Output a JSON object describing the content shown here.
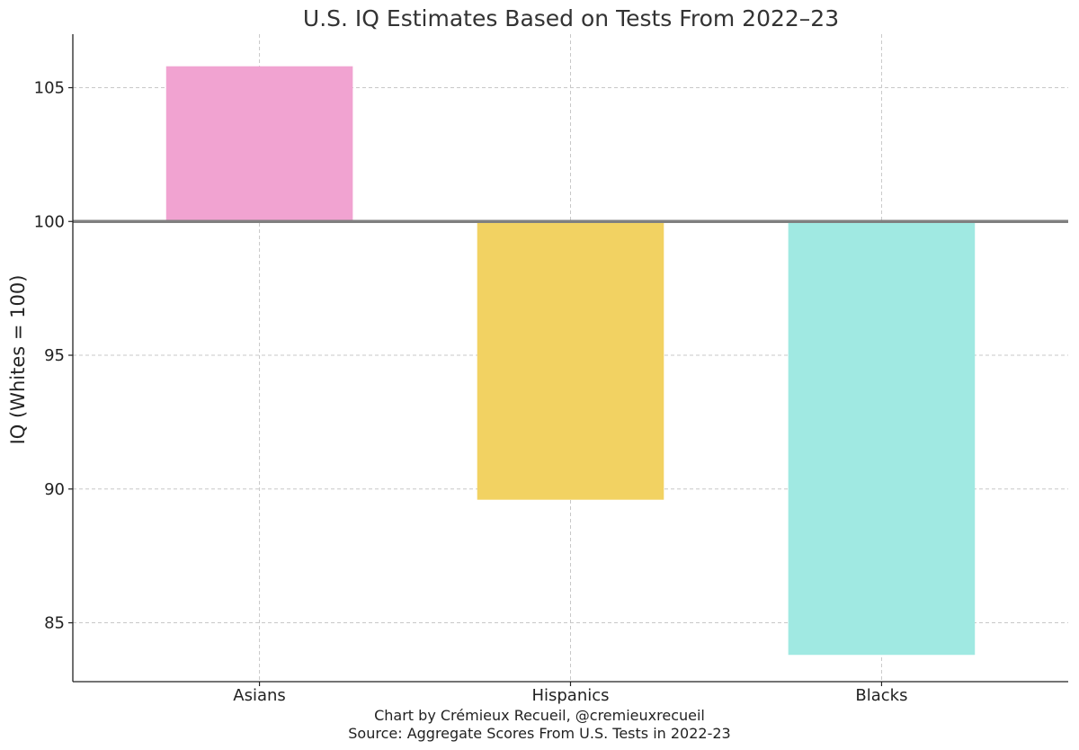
{
  "chart_data": {
    "type": "bar",
    "title": "U.S. IQ Estimates Based on Tests From 2022–23",
    "xlabel": "",
    "ylabel": "IQ (Whites = 100)",
    "categories": [
      "Asians",
      "Hispanics",
      "Blacks"
    ],
    "values": [
      105.8,
      89.6,
      83.8
    ],
    "baseline": 100,
    "colors": [
      "#f1a3d1",
      "#f2d262",
      "#a0e9e2"
    ],
    "reference_line": {
      "value": 100,
      "color": "#808080"
    },
    "ylim": [
      82.8,
      107
    ],
    "yticks": [
      85,
      90,
      95,
      100,
      105
    ],
    "grid": true,
    "caption": {
      "line1": "Chart by Crémieux Recueil, @cremieuxrecueil",
      "line2": "Source: Aggregate Scores From U.S. Tests in 2022-23"
    }
  }
}
